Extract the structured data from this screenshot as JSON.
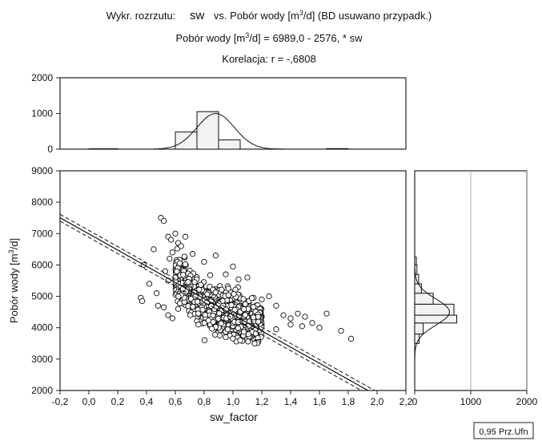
{
  "header": {
    "line1_prefix": "Wykr. rozrzutu:",
    "line1_var": "sw",
    "line1_rest_a": "vs. Pobór wody [m",
    "line1_sup": "3",
    "line1_rest_b": "/d] (BD usuwano przypadk.)",
    "line2_a": "Pobór wody [m",
    "line2_sup": "3",
    "line2_b": "/d] = 6989,0 - 2576,  * sw",
    "line3": "Korelacja: r =   -,6808"
  },
  "chart_data": {
    "type": "scatter",
    "xlabel": "sw_factor",
    "ylabel_a": "Pobór wody [m",
    "ylabel_sup": "3",
    "ylabel_b": "/d]",
    "xlim": [
      -0.2,
      2.2
    ],
    "ylim": [
      2000,
      9000
    ],
    "xticks": [
      -0.2,
      0.0,
      0.2,
      0.4,
      0.6,
      0.8,
      1.0,
      1.2,
      1.4,
      1.6,
      1.8,
      2.0,
      2.2
    ],
    "xtick_labels": [
      "-0,2",
      "0,0",
      "0,2",
      "0,4",
      "0,6",
      "0,8",
      "1,0",
      "1,2",
      "1,4",
      "1,6",
      "1,8",
      "2,0",
      "2,2"
    ],
    "yticks": [
      2000,
      3000,
      4000,
      5000,
      6000,
      7000,
      8000,
      9000
    ],
    "ytick_labels": [
      "2000",
      "3000",
      "4000",
      "5000",
      "6000",
      "7000",
      "8000",
      "9000"
    ],
    "regression": {
      "intercept": 6989.0,
      "slope": -2576.0,
      "r": -0.6808
    },
    "confidence_label": "0,95 Prz.Ufn",
    "points": [
      [
        0.5,
        7500
      ],
      [
        0.52,
        7400
      ],
      [
        0.45,
        6500
      ],
      [
        0.38,
        6000
      ],
      [
        0.36,
        4950
      ],
      [
        0.37,
        4850
      ],
      [
        0.42,
        5400
      ],
      [
        0.47,
        5100
      ],
      [
        0.48,
        4700
      ],
      [
        0.55,
        6900
      ],
      [
        0.57,
        6800
      ],
      [
        0.6,
        7000
      ],
      [
        0.62,
        6700
      ],
      [
        0.58,
        6400
      ],
      [
        0.56,
        6200
      ],
      [
        0.53,
        5800
      ],
      [
        0.55,
        5500
      ],
      [
        0.6,
        5600
      ],
      [
        0.64,
        6600
      ],
      [
        0.67,
        6900
      ],
      [
        0.52,
        4650
      ],
      [
        0.55,
        4400
      ],
      [
        0.58,
        4300
      ],
      [
        0.62,
        4600
      ],
      [
        1.2,
        4900
      ],
      [
        1.25,
        5000
      ],
      [
        1.3,
        4700
      ],
      [
        1.35,
        4400
      ],
      [
        1.4,
        4300
      ],
      [
        1.45,
        4450
      ],
      [
        1.5,
        4350
      ],
      [
        1.55,
        4150
      ],
      [
        1.6,
        4000
      ],
      [
        1.65,
        4450
      ],
      [
        1.75,
        3900
      ],
      [
        1.82,
        3650
      ],
      [
        1.15,
        3500
      ],
      [
        1.05,
        3600
      ],
      [
        0.95,
        3700
      ],
      [
        1.3,
        3950
      ],
      [
        1.4,
        4100
      ],
      [
        1.48,
        4050
      ],
      [
        1.1,
        5600
      ],
      [
        1.0,
        5950
      ],
      [
        0.88,
        6300
      ],
      [
        0.8,
        6100
      ],
      [
        0.72,
        6350
      ],
      [
        0.95,
        5700
      ]
    ],
    "top_hist": {
      "bins": [
        [
          0.0,
          0.2,
          10
        ],
        [
          0.6,
          0.75,
          480
        ],
        [
          0.75,
          0.9,
          1050
        ],
        [
          0.9,
          1.05,
          260
        ],
        [
          1.65,
          1.8,
          15
        ]
      ],
      "ylim": [
        0,
        2000
      ],
      "yticks": [
        0,
        1000,
        2000
      ],
      "ytick_labels": [
        "0",
        "1000",
        "2000"
      ]
    },
    "right_hist": {
      "bins": [
        [
          3500,
          3800,
          80
        ],
        [
          3800,
          4150,
          150
        ],
        [
          4150,
          4400,
          750
        ],
        [
          4400,
          4750,
          700
        ],
        [
          4750,
          5100,
          330
        ],
        [
          5100,
          5400,
          120
        ],
        [
          5400,
          5700,
          70
        ],
        [
          5700,
          6000,
          40
        ],
        [
          6000,
          6250,
          30
        ]
      ],
      "xlim": [
        0,
        2000
      ],
      "xticks": [
        0,
        1000,
        2000
      ],
      "xtick_labels": [
        "0",
        "1000",
        "2000"
      ]
    }
  }
}
